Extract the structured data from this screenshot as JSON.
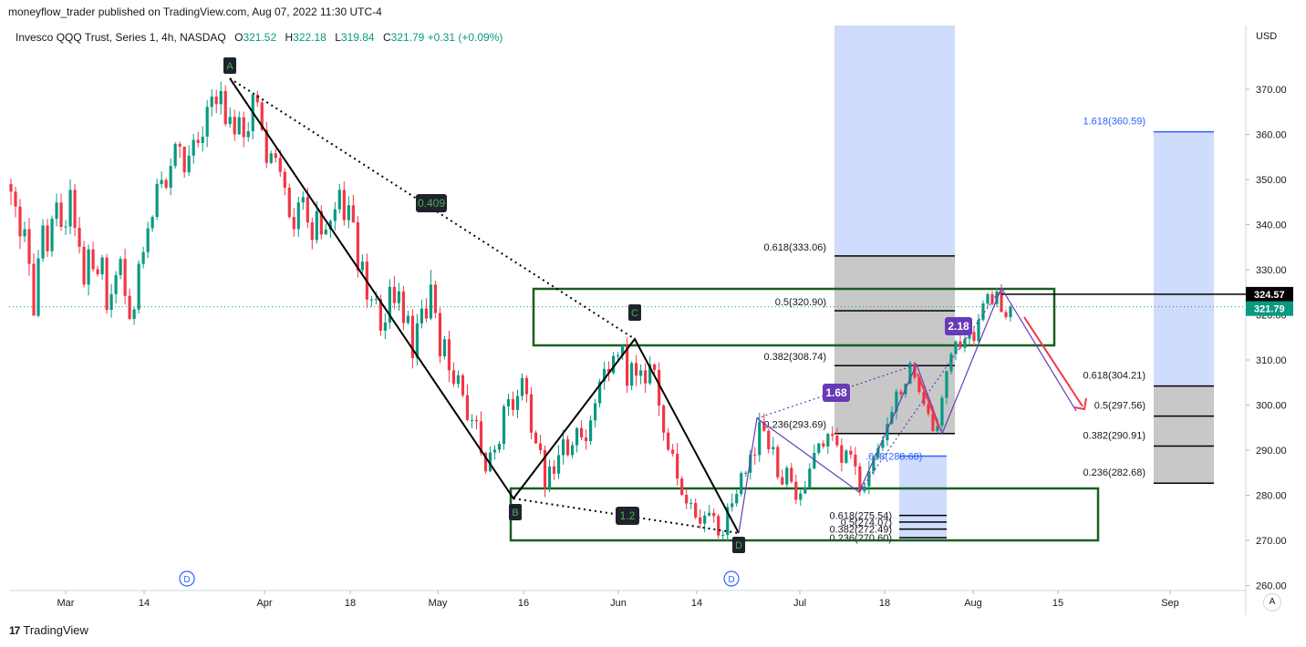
{
  "header": {
    "published_line": "moneyflow_trader published on TradingView.com, Aug 07, 2022 11:30 UTC-4"
  },
  "legend": {
    "symbol_text": "Invesco QQQ Trust, Series 1, 4h, NASDAQ",
    "o_label": "O",
    "o_value": "321.52",
    "h_label": "H",
    "h_value": "322.18",
    "l_label": "L",
    "l_value": "319.84",
    "c_label": "C",
    "c_value": "321.79",
    "change": "+0.31 (+0.09%)"
  },
  "footer": {
    "brand": "TradingView",
    "auto_button": "A"
  },
  "colors": {
    "up": "#089981",
    "down": "#f23645",
    "box": "#1b5e20",
    "fib_box": "#c8c8c8",
    "blue_box": "#cfdcfd",
    "purple": "#673ab7",
    "red_arrow": "#f23645"
  },
  "chart_data": {
    "type": "candlestick",
    "currency_label": "USD",
    "y_ticks": [
      "370.00",
      "360.00",
      "350.00",
      "340.00",
      "330.00",
      "320.00",
      "310.00",
      "300.00",
      "290.00",
      "280.00",
      "270.00",
      "260.00"
    ],
    "x_ticks": [
      "Mar",
      "14",
      "Apr",
      "18",
      "May",
      "16",
      "Jun",
      "14",
      "Jul",
      "18",
      "Aug",
      "15",
      "Sep"
    ],
    "price_tags": [
      {
        "value": "324.57",
        "style": "black"
      },
      {
        "value": "321.79",
        "style": "green"
      }
    ],
    "harmonic_labels": [
      "A",
      "B",
      "C",
      "D"
    ],
    "ratio_labels": [
      {
        "text": "0.409",
        "style": "green"
      },
      {
        "text": "1.2",
        "style": "green"
      },
      {
        "text": "1.68",
        "style": "purple"
      },
      {
        "text": "2.18",
        "style": "purple"
      }
    ],
    "fib_left": [
      {
        "label": "0.618(333.06)",
        "price": 333.06
      },
      {
        "label": "0.5(320.90)",
        "price": 320.9
      },
      {
        "label": "0.382(308.74)",
        "price": 308.74
      },
      {
        "label": "0.236(293.69)",
        "price": 293.69
      }
    ],
    "fib_small_partial": ".618(288.68)",
    "fib_small": [
      {
        "label": "0.618(275.54)",
        "price": 275.54
      },
      {
        "label": "0.5(274.07)",
        "price": 274.07
      },
      {
        "label": "0.382(272.49)",
        "price": 272.49
      },
      {
        "label": "0.236(270.60)",
        "price": 270.6
      }
    ],
    "fib_right": [
      {
        "label": "0.618(304.21)",
        "price": 304.21
      },
      {
        "label": "0.5(297.56)",
        "price": 297.56
      },
      {
        "label": "0.382(290.91)",
        "price": 290.91
      },
      {
        "label": "0.236(282.68)",
        "price": 282.68
      }
    ],
    "fib_extension": {
      "label": "1.618(360.59)",
      "price": 360.59
    },
    "dividend_marker": "D",
    "candles": [
      [
        349.0,
        347.3,
        344.3,
        350.2
      ],
      [
        347.3,
        344.0,
        341.6,
        348.4
      ],
      [
        344.0,
        337.4,
        334.6,
        345.7
      ],
      [
        337.4,
        339.0,
        336.1,
        340.7
      ],
      [
        339.0,
        331.3,
        328.7,
        341.5
      ],
      [
        331.3,
        319.8,
        319.8,
        333.6
      ],
      [
        319.8,
        332.5,
        319.4,
        334.4
      ],
      [
        332.5,
        339.8,
        331.7,
        341.2
      ],
      [
        339.8,
        334.1,
        332.8,
        341.3
      ],
      [
        334.1,
        341.3,
        332.9,
        342.0
      ],
      [
        341.3,
        344.9,
        339.6,
        346.9
      ],
      [
        344.9,
        339.5,
        338.6,
        346.9
      ],
      [
        339.5,
        339.6,
        337.7,
        341.0
      ],
      [
        339.6,
        347.7,
        337.9,
        350.0
      ],
      [
        347.7,
        339.3,
        337.4,
        349.0
      ],
      [
        339.3,
        335.1,
        333.6,
        341.7
      ],
      [
        335.1,
        326.7,
        326.1,
        336.4
      ],
      [
        326.7,
        334.5,
        324.3,
        335.6
      ],
      [
        334.5,
        330.1,
        329.6,
        336.2
      ],
      [
        330.1,
        329.0,
        328.5,
        330.9
      ],
      [
        329.0,
        332.7,
        327.8,
        333.3
      ],
      [
        332.7,
        321.1,
        320.2,
        333.5
      ],
      [
        321.1,
        324.6,
        319.4,
        326.8
      ],
      [
        324.6,
        328.8,
        322.5,
        329.7
      ],
      [
        328.8,
        332.4,
        327.9,
        333.0
      ],
      [
        332.4,
        324.2,
        322.3,
        334.7
      ],
      [
        324.2,
        319.1,
        318.8,
        325.8
      ],
      [
        319.1,
        321.2,
        317.8,
        321.7
      ],
      [
        321.2,
        331.3,
        320.3,
        332.1
      ],
      [
        331.3,
        333.9,
        330.3,
        335.1
      ],
      [
        333.9,
        339.2,
        332.6,
        340.6
      ],
      [
        339.2,
        341.7,
        338.4,
        342.1
      ],
      [
        341.7,
        349.0,
        341.0,
        350.2
      ],
      [
        349.0,
        349.9,
        348.1,
        351.8
      ],
      [
        349.9,
        348.2,
        347.8,
        350.4
      ],
      [
        348.2,
        353.0,
        346.5,
        354.7
      ],
      [
        353.0,
        357.9,
        352.4,
        358.3
      ],
      [
        357.9,
        357.3,
        354.8,
        358.4
      ],
      [
        357.3,
        351.6,
        350.4,
        357.3
      ],
      [
        351.6,
        355.3,
        350.8,
        357.6
      ],
      [
        355.3,
        358.8,
        353.5,
        360.1
      ],
      [
        358.8,
        358.1,
        357.1,
        360.6
      ],
      [
        358.1,
        359.5,
        356.2,
        361.8
      ],
      [
        359.5,
        366.1,
        357.2,
        367.6
      ],
      [
        366.1,
        368.4,
        364.0,
        370.0
      ],
      [
        368.4,
        366.7,
        364.7,
        369.9
      ],
      [
        366.7,
        369.6,
        364.4,
        371.7
      ],
      [
        369.6,
        362.3,
        361.8,
        370.9
      ],
      [
        362.3,
        363.9,
        361.5,
        366.0
      ],
      [
        363.9,
        360.0,
        358.6,
        365.5
      ],
      [
        360.0,
        363.8,
        359.9,
        365.1
      ],
      [
        363.8,
        359.4,
        357.2,
        365.0
      ],
      [
        359.4,
        360.7,
        358.4,
        362.7
      ],
      [
        360.7,
        368.8,
        358.9,
        369.2
      ],
      [
        368.8,
        367.1,
        366.1,
        369.7
      ],
      [
        367.1,
        361.0,
        360.7,
        367.5
      ],
      [
        361.0,
        353.7,
        352.5,
        362.8
      ],
      [
        353.7,
        355.8,
        353.4,
        356.4
      ],
      [
        355.8,
        354.8,
        353.8,
        356.8
      ],
      [
        354.8,
        351.7,
        350.6,
        356.6
      ],
      [
        351.7,
        348.2,
        346.5,
        352.5
      ],
      [
        348.2,
        341.7,
        341.3,
        349.1
      ],
      [
        341.7,
        339.0,
        337.3,
        343.7
      ],
      [
        339.0,
        344.9,
        337.3,
        346.2
      ],
      [
        344.9,
        346.1,
        343.3,
        347.4
      ],
      [
        346.1,
        340.5,
        339.2,
        348.2
      ],
      [
        340.5,
        336.6,
        334.5,
        341.6
      ],
      [
        336.6,
        343.0,
        335.8,
        345.2
      ],
      [
        343.0,
        337.8,
        336.7,
        344.3
      ],
      [
        337.8,
        338.9,
        337.8,
        340.2
      ],
      [
        338.9,
        340.8,
        337.0,
        341.2
      ],
      [
        340.8,
        343.4,
        338.7,
        345.0
      ],
      [
        343.4,
        347.7,
        342.5,
        349.0
      ],
      [
        347.7,
        341.0,
        339.8,
        349.6
      ],
      [
        341.0,
        344.3,
        339.2,
        346.3
      ],
      [
        344.3,
        340.5,
        340.4,
        346.6
      ],
      [
        340.5,
        329.9,
        328.3,
        341.9
      ],
      [
        329.9,
        331.8,
        328.8,
        333.4
      ],
      [
        331.8,
        323.4,
        321.5,
        333.6
      ],
      [
        323.4,
        323.4,
        321.8,
        324.2
      ],
      [
        323.4,
        323.5,
        322.3,
        325.2
      ],
      [
        323.5,
        316.5,
        315.3,
        324.5
      ],
      [
        316.5,
        318.3,
        314.6,
        320.3
      ],
      [
        318.3,
        326.2,
        316.9,
        327.9
      ],
      [
        326.2,
        322.6,
        321.2,
        328.6
      ],
      [
        322.6,
        325.2,
        320.9,
        327.1
      ],
      [
        325.2,
        318.2,
        316.6,
        326.4
      ],
      [
        318.2,
        319.8,
        317.8,
        320.9
      ],
      [
        319.8,
        310.4,
        308.1,
        321.2
      ],
      [
        310.4,
        318.1,
        308.8,
        320.2
      ],
      [
        318.1,
        321.4,
        317.0,
        323.4
      ],
      [
        321.4,
        319.2,
        318.4,
        323.7
      ],
      [
        319.2,
        326.7,
        318.8,
        330.0
      ],
      [
        326.7,
        320.4,
        319.2,
        327.6
      ],
      [
        320.4,
        310.8,
        309.3,
        321.6
      ],
      [
        310.8,
        314.6,
        310.1,
        315.3
      ],
      [
        314.6,
        307.7,
        305.1,
        316.5
      ],
      [
        307.7,
        304.7,
        304.0,
        309.5
      ],
      [
        304.7,
        306.6,
        303.8,
        307.7
      ],
      [
        306.6,
        302.2,
        301.7,
        307.0
      ],
      [
        302.2,
        296.7,
        296.4,
        304.6
      ],
      [
        296.7,
        296.7,
        294.9,
        298.0
      ],
      [
        296.7,
        296.4,
        294.6,
        297.7
      ],
      [
        296.4,
        289.4,
        288.8,
        298.6
      ],
      [
        289.4,
        285.3,
        284.8,
        289.6
      ],
      [
        285.3,
        289.5,
        285.1,
        290.8
      ],
      [
        289.5,
        290.1,
        287.9,
        291.1
      ],
      [
        290.1,
        291.4,
        289.4,
        292.0
      ],
      [
        291.4,
        299.7,
        290.1,
        300.2
      ],
      [
        299.7,
        301.3,
        297.6,
        302.5
      ],
      [
        301.3,
        298.9,
        297.6,
        303.0
      ],
      [
        298.9,
        302.0,
        297.1,
        303.4
      ],
      [
        302.0,
        306.0,
        301.0,
        307.0
      ],
      [
        306.0,
        302.4,
        300.6,
        306.6
      ],
      [
        302.4,
        293.9,
        292.4,
        304.0
      ],
      [
        293.9,
        291.5,
        291.4,
        294.4
      ],
      [
        291.5,
        290.0,
        289.1,
        293.4
      ],
      [
        290.0,
        281.5,
        279.6,
        291.0
      ],
      [
        281.5,
        286.4,
        280.7,
        287.9
      ],
      [
        286.4,
        284.8,
        283.4,
        287.8
      ],
      [
        284.8,
        288.9,
        283.6,
        291.1
      ],
      [
        288.9,
        292.4,
        286.8,
        294.5
      ],
      [
        292.4,
        288.9,
        288.6,
        293.2
      ],
      [
        288.9,
        291.1,
        288.2,
        291.9
      ],
      [
        291.1,
        294.9,
        289.5,
        295.1
      ],
      [
        294.9,
        292.8,
        292.2,
        296.6
      ],
      [
        292.8,
        292.0,
        290.1,
        294.6
      ],
      [
        292.0,
        296.6,
        291.2,
        297.7
      ],
      [
        296.6,
        300.4,
        295.0,
        301.4
      ],
      [
        300.4,
        305.2,
        299.5,
        305.8
      ],
      [
        305.2,
        308.0,
        303.4,
        309.6
      ],
      [
        308.0,
        307.1,
        305.3,
        309.7
      ],
      [
        307.1,
        310.9,
        306.7,
        311.8
      ],
      [
        310.9,
        311.0,
        309.5,
        311.8
      ],
      [
        311.0,
        313.2,
        310.0,
        313.3
      ],
      [
        313.2,
        304.3,
        302.7,
        315.0
      ],
      [
        304.3,
        309.3,
        303.3,
        309.7
      ],
      [
        309.3,
        306.5,
        304.2,
        311.1
      ],
      [
        306.5,
        307.7,
        304.6,
        309.0
      ],
      [
        307.7,
        304.8,
        302.7,
        309.3
      ],
      [
        304.8,
        309.0,
        304.4,
        310.8
      ],
      [
        309.0,
        307.8,
        306.5,
        309.3
      ],
      [
        307.8,
        299.9,
        297.6,
        309.5
      ],
      [
        299.9,
        293.9,
        292.1,
        300.2
      ],
      [
        293.9,
        290.1,
        289.8,
        294.9
      ],
      [
        290.1,
        289.2,
        288.6,
        291.4
      ],
      [
        289.2,
        283.7,
        282.1,
        291.6
      ],
      [
        283.7,
        280.1,
        279.9,
        284.3
      ],
      [
        280.1,
        278.2,
        276.9,
        281.2
      ],
      [
        278.2,
        278.3,
        276.9,
        279.2
      ],
      [
        278.3,
        275.1,
        274.7,
        279.3
      ],
      [
        275.1,
        273.7,
        272.6,
        276.9
      ],
      [
        273.7,
        275.5,
        271.8,
        276.4
      ],
      [
        275.5,
        276.1,
        275.3,
        277.9
      ],
      [
        276.1,
        275.4,
        273.9,
        277.1
      ],
      [
        275.4,
        271.1,
        270.4,
        275.9
      ],
      [
        271.1,
        271.2,
        270.0,
        272.2
      ],
      [
        271.2,
        277.4,
        269.8,
        278.2
      ],
      [
        277.4,
        278.2,
        276.4,
        280.4
      ],
      [
        278.2,
        280.3,
        277.5,
        281.2
      ],
      [
        280.3,
        284.9,
        279.7,
        285.3
      ],
      [
        284.9,
        285.0,
        284.1,
        285.4
      ],
      [
        285.0,
        289.0,
        283.5,
        290.1
      ],
      [
        289.0,
        288.9,
        286.8,
        290.7
      ],
      [
        288.9,
        296.3,
        287.4,
        298.3
      ],
      [
        296.3,
        294.3,
        294.1,
        298.1
      ],
      [
        294.3,
        290.2,
        289.3,
        294.8
      ],
      [
        290.2,
        290.7,
        288.9,
        292.9
      ],
      [
        290.7,
        284.0,
        283.5,
        291.2
      ],
      [
        284.0,
        282.4,
        282.2,
        285.7
      ],
      [
        282.4,
        286.1,
        281.8,
        286.6
      ],
      [
        286.1,
        283.0,
        282.6,
        287.2
      ],
      [
        283.0,
        279.0,
        278.1,
        284.6
      ],
      [
        279.0,
        280.4,
        277.7,
        281.2
      ],
      [
        280.4,
        281.8,
        280.3,
        283.2
      ],
      [
        281.8,
        285.9,
        281.4,
        287.1
      ],
      [
        285.9,
        289.4,
        285.8,
        291.3
      ],
      [
        289.4,
        291.5,
        288.9,
        291.6
      ],
      [
        291.5,
        290.8,
        290.3,
        292.2
      ],
      [
        290.8,
        293.6,
        289.2,
        293.9
      ],
      [
        293.6,
        293.2,
        292.0,
        295.3
      ],
      [
        293.2,
        291.1,
        290.6,
        294.9
      ],
      [
        291.1,
        287.2,
        285.3,
        292.6
      ],
      [
        287.2,
        289.9,
        287.0,
        290.2
      ],
      [
        289.9,
        289.0,
        288.1,
        291.0
      ],
      [
        289.0,
        286.4,
        284.5,
        290.7
      ],
      [
        286.4,
        280.9,
        279.9,
        287.2
      ],
      [
        280.9,
        282.0,
        280.4,
        282.8
      ],
      [
        282.0,
        285.3,
        280.2,
        287.7
      ],
      [
        285.3,
        288.3,
        284.5,
        289.0
      ],
      [
        288.3,
        290.5,
        288.1,
        291.5
      ],
      [
        290.5,
        292.2,
        289.8,
        293.1
      ],
      [
        292.2,
        295.8,
        290.9,
        297.3
      ],
      [
        295.8,
        298.5,
        295.7,
        299.7
      ],
      [
        298.5,
        303.0,
        296.8,
        303.6
      ],
      [
        303.0,
        302.4,
        301.3,
        303.6
      ],
      [
        302.4,
        304.7,
        301.6,
        304.8
      ],
      [
        304.7,
        309.3,
        304.6,
        309.8
      ],
      [
        309.3,
        306.1,
        305.6,
        309.6
      ],
      [
        306.1,
        302.9,
        302.4,
        306.5
      ],
      [
        302.9,
        300.2,
        299.7,
        304.2
      ],
      [
        300.2,
        298.1,
        297.4,
        301.0
      ],
      [
        298.1,
        294.2,
        294.1,
        299.8
      ],
      [
        294.2,
        295.4,
        293.8,
        297.0
      ],
      [
        295.4,
        301.6,
        294.3,
        302.2
      ],
      [
        301.6,
        307.5,
        300.2,
        307.7
      ],
      [
        307.5,
        311.3,
        306.8,
        311.8
      ],
      [
        311.3,
        314.1,
        310.0,
        314.4
      ],
      [
        314.1,
        312.7,
        312.3,
        316.0
      ],
      [
        312.7,
        314.7,
        311.7,
        315.4
      ],
      [
        314.7,
        316.2,
        313.4,
        317.3
      ],
      [
        316.2,
        314.2,
        313.0,
        317.4
      ],
      [
        314.2,
        318.9,
        313.8,
        320.2
      ],
      [
        318.9,
        322.5,
        318.5,
        323.2
      ],
      [
        322.5,
        324.6,
        321.7,
        324.9
      ],
      [
        324.6,
        322.4,
        322.1,
        325.3
      ],
      [
        322.4,
        325.2,
        321.7,
        326.0
      ],
      [
        325.2,
        320.6,
        320.6,
        326.8
      ],
      [
        320.6,
        319.5,
        319.0,
        321.2
      ],
      [
        319.5,
        321.8,
        318.5,
        322.2
      ]
    ]
  }
}
